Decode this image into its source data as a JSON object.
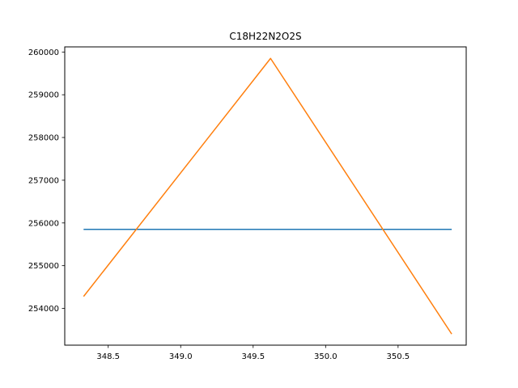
{
  "chart_data": {
    "type": "line",
    "title": "C18H22N2O2S",
    "xlabel": "",
    "ylabel": "",
    "xlim": [
      348.2,
      350.97
    ],
    "ylim": [
      253140,
      260120
    ],
    "grid": false,
    "x_ticks": [
      348.5,
      349.0,
      349.5,
      350.0,
      350.5
    ],
    "x_tick_labels": [
      "348.5",
      "349.0",
      "349.5",
      "350.0",
      "350.5"
    ],
    "y_ticks": [
      254000,
      255000,
      256000,
      257000,
      258000,
      259000,
      260000
    ],
    "y_tick_labels": [
      "254000",
      "255000",
      "256000",
      "257000",
      "258000",
      "259000",
      "260000"
    ],
    "series": [
      {
        "color": "#1f77b4",
        "x": [
          348.33,
          350.87
        ],
        "y": [
          255850,
          255850
        ]
      },
      {
        "color": "#ff7f0e",
        "x": [
          348.33,
          349.62,
          350.87
        ],
        "y": [
          254280,
          259850,
          253400
        ]
      }
    ]
  }
}
